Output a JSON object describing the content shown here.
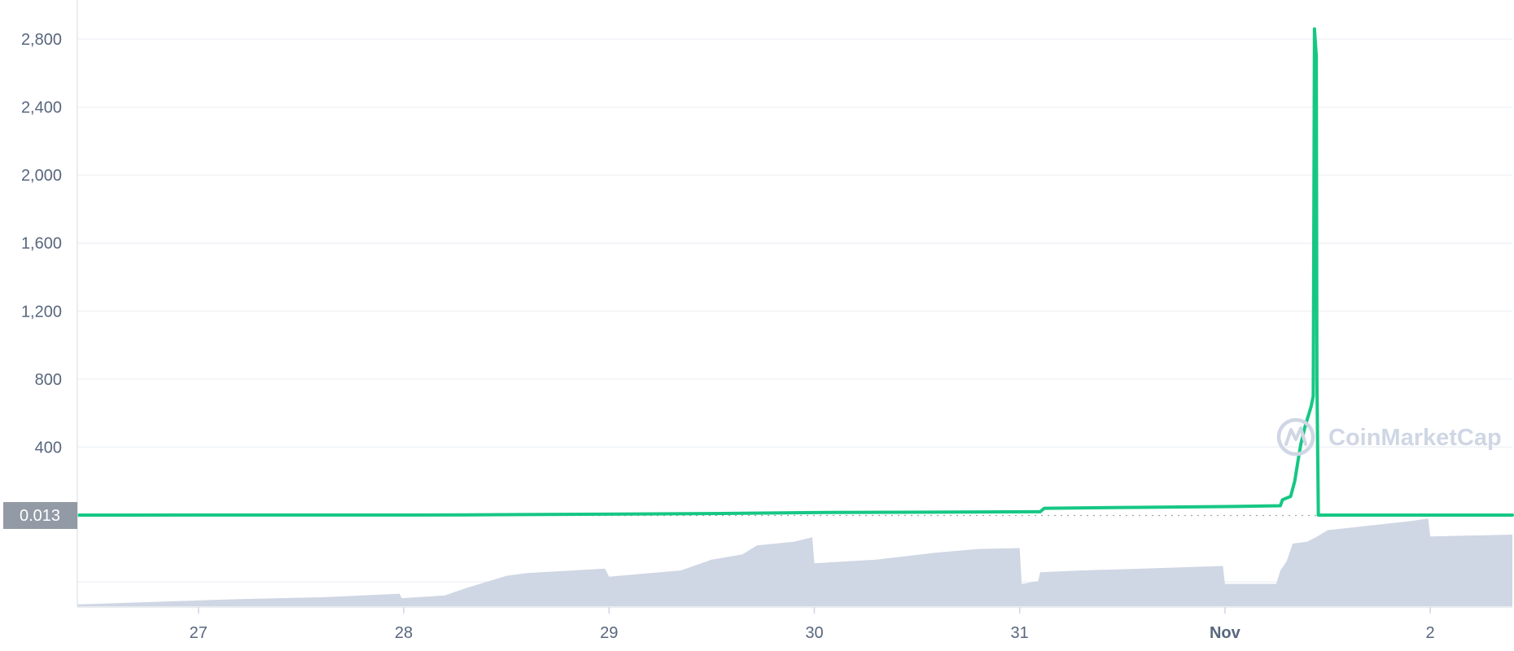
{
  "chart_data": {
    "type": "line",
    "title": "",
    "xlabel": "",
    "ylabel": "",
    "y_ticks": [
      400,
      800,
      1200,
      1600,
      2000,
      2400,
      2800
    ],
    "y_tick_labels": [
      "400",
      "800",
      "1,200",
      "1,600",
      "2,000",
      "2,400",
      "2,800"
    ],
    "ylim": [
      0,
      2880
    ],
    "x_ticks": [
      {
        "day": 27,
        "label": "27",
        "bold": false
      },
      {
        "day": 28,
        "label": "28",
        "bold": false
      },
      {
        "day": 29,
        "label": "29",
        "bold": false
      },
      {
        "day": 30,
        "label": "30",
        "bold": false
      },
      {
        "day": 31,
        "label": "31",
        "bold": false
      },
      {
        "day": 32,
        "label": "Nov",
        "bold": true
      },
      {
        "day": 33,
        "label": "2",
        "bold": false
      }
    ],
    "xlim": [
      26.41,
      33.4
    ],
    "grid": true,
    "current_price_label": "0.013",
    "colors": {
      "price_line": "#16c784",
      "volume_fill": "#cfd6e4",
      "label_bg": "#929aa5",
      "label_text": "#ffffff",
      "axis_text": "#58667e"
    },
    "price_series": {
      "name": "",
      "x": [
        26.41,
        28.3,
        29.6,
        30.0,
        31.1,
        31.12,
        31.5,
        32.0,
        32.27,
        32.28,
        32.32,
        32.34,
        32.36,
        32.37,
        32.38,
        32.39,
        32.4,
        32.41,
        32.42,
        32.43,
        32.434,
        32.436,
        32.445,
        32.448,
        32.455,
        32.46,
        33.4
      ],
      "y": [
        0.013,
        1,
        10,
        15,
        20,
        40,
        45,
        50,
        55,
        90,
        110,
        200,
        350,
        420,
        470,
        520,
        560,
        600,
        640,
        700,
        2100,
        2860,
        2700,
        800,
        0.013,
        0.013,
        0.013
      ]
    },
    "volume_series": {
      "name": "",
      "x": [
        26.41,
        26.8,
        27.2,
        27.6,
        27.98,
        27.99,
        28.2,
        28.3,
        28.5,
        28.6,
        28.98,
        29.0,
        29.15,
        29.35,
        29.5,
        29.65,
        29.72,
        29.9,
        29.99,
        30.0,
        30.3,
        30.6,
        30.8,
        31.0,
        31.01,
        31.09,
        31.1,
        31.3,
        31.6,
        31.99,
        32.0,
        32.25,
        32.27,
        32.3,
        32.33,
        32.4,
        32.45,
        32.5,
        32.7,
        32.9,
        32.99,
        33.0,
        33.4
      ],
      "y": [
        2,
        5,
        8,
        10,
        14,
        9,
        12,
        20,
        34,
        37,
        42,
        33,
        36,
        40,
        52,
        58,
        68,
        72,
        77,
        48,
        52,
        60,
        64,
        65,
        25,
        28,
        38,
        40,
        42,
        45,
        25,
        25,
        40,
        50,
        70,
        72,
        78,
        85,
        90,
        95,
        98,
        78,
        80
      ]
    },
    "watermark": "CoinMarketCap"
  }
}
